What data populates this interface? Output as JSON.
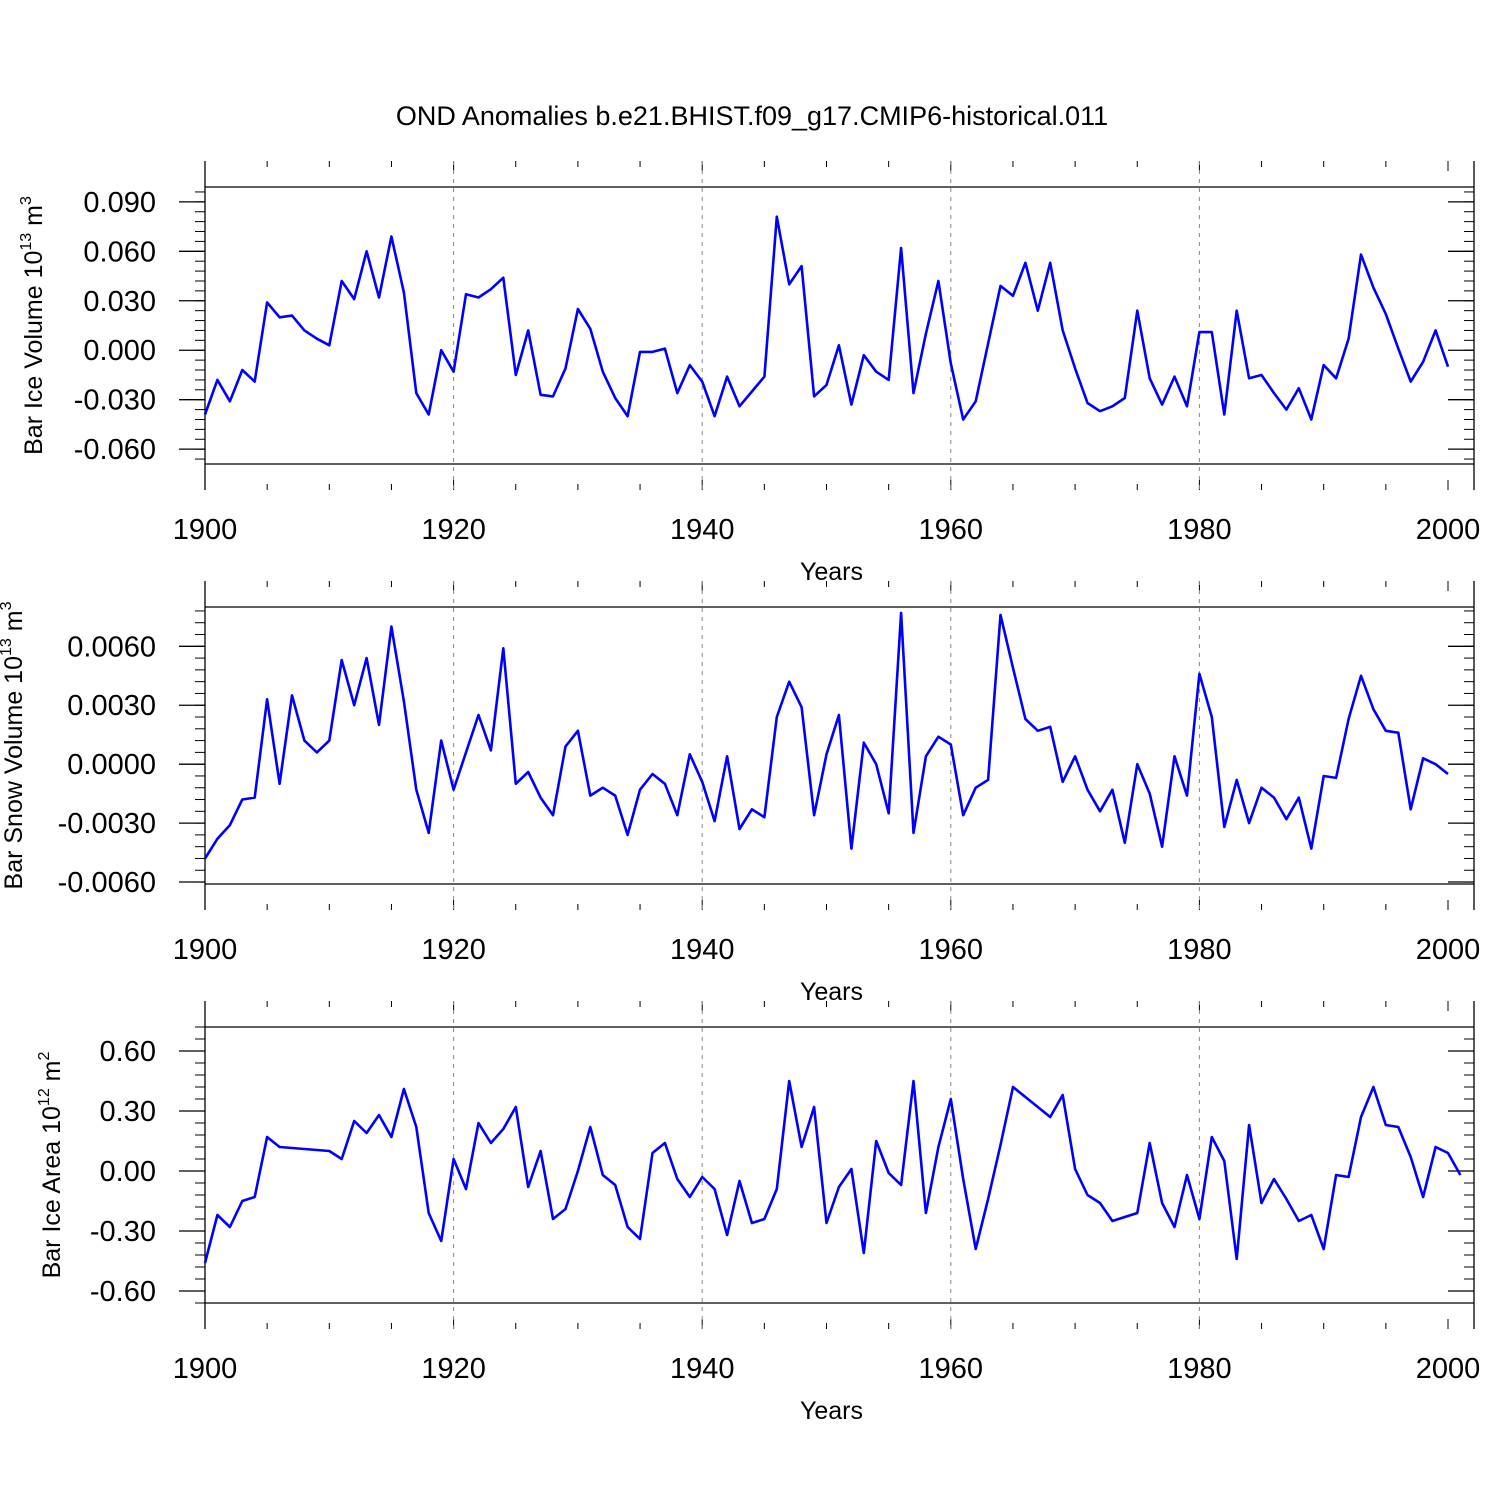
{
  "title": "OND Anomalies b.e21.BHIST.f09_g17.CMIP6-historical.011",
  "colors": {
    "series": "#0000ff",
    "axis": "#000000",
    "grid": "#888888"
  },
  "chart_data": [
    {
      "type": "line",
      "name": "ice-volume",
      "ylabel_main": "Bar Ice Volume 10",
      "ylabel_exp": "13",
      "ylabel_unit": " m",
      "ylabel_unit_exp": "3",
      "xlabel": "Years",
      "xlim": [
        1900,
        2000
      ],
      "ylim": [
        -0.069,
        0.099
      ],
      "xticks": [
        "1900",
        "1920",
        "1940",
        "1960",
        "1980",
        "2000"
      ],
      "yticks": [
        -0.06,
        -0.03,
        0.0,
        0.03,
        0.06,
        0.09
      ],
      "yticklabels": [
        "-0.060",
        "-0.030",
        "0.000",
        "0.030",
        "0.060",
        "0.090"
      ],
      "x_start": 1900,
      "values": [
        -0.039,
        -0.018,
        -0.031,
        -0.012,
        -0.019,
        0.029,
        0.02,
        0.021,
        0.012,
        0.007,
        0.003,
        0.042,
        0.031,
        0.06,
        0.032,
        0.069,
        0.035,
        -0.026,
        -0.039,
        0.0,
        -0.013,
        0.034,
        0.032,
        0.037,
        0.044,
        -0.015,
        0.012,
        -0.027,
        -0.028,
        -0.011,
        0.025,
        0.013,
        -0.013,
        -0.029,
        -0.04,
        -0.001,
        -0.001,
        0.001,
        -0.026,
        -0.009,
        -0.019,
        -0.04,
        -0.016,
        -0.034,
        -0.025,
        -0.016,
        0.081,
        0.04,
        0.051,
        -0.028,
        -0.021,
        0.003,
        -0.033,
        -0.003,
        -0.013,
        -0.018,
        0.062,
        -0.026,
        0.01,
        0.042,
        -0.008,
        -0.042,
        -0.031,
        0.004,
        0.039,
        0.033,
        0.053,
        0.024,
        0.053,
        0.012,
        -0.011,
        -0.032,
        -0.037,
        -0.034,
        -0.029,
        0.024,
        -0.017,
        -0.033,
        -0.016,
        -0.034,
        0.011,
        0.011,
        -0.039,
        0.024,
        -0.017,
        -0.015,
        -0.026,
        -0.036,
        -0.023,
        -0.042,
        -0.009,
        -0.017,
        0.007,
        0.058,
        0.038,
        0.022,
        0.001,
        -0.019,
        -0.007,
        0.012,
        -0.01
      ]
    },
    {
      "type": "line",
      "name": "snow-volume",
      "ylabel_main": "Bar Snow Volume 10",
      "ylabel_exp": "13",
      "ylabel_unit": " m",
      "ylabel_unit_exp": "3",
      "xlabel": "Years",
      "xlim": [
        1900,
        2000
      ],
      "ylim": [
        -0.0061,
        0.008
      ],
      "xticks": [
        "1900",
        "1920",
        "1940",
        "1960",
        "1980",
        "2000"
      ],
      "yticks": [
        -0.006,
        -0.003,
        0.0,
        0.003,
        0.006
      ],
      "yticklabels": [
        "-0.0060",
        "-0.0030",
        "0.0000",
        "0.0030",
        "0.0060"
      ],
      "x_start": 1900,
      "values": [
        -0.0048,
        -0.0038,
        -0.0031,
        -0.0018,
        -0.0017,
        0.0033,
        -0.001,
        0.0035,
        0.0012,
        0.0006,
        0.0012,
        0.0053,
        0.003,
        0.0054,
        0.002,
        0.007,
        0.0032,
        -0.0013,
        -0.0035,
        0.0012,
        -0.0013,
        0.0006,
        0.0025,
        0.0007,
        0.0059,
        -0.001,
        -0.0004,
        -0.0017,
        -0.0026,
        0.0009,
        0.0017,
        -0.0016,
        -0.0012,
        -0.0016,
        -0.0036,
        -0.0013,
        -0.0005,
        -0.001,
        -0.0026,
        0.0005,
        -0.0009,
        -0.0029,
        0.0004,
        -0.0033,
        -0.0023,
        -0.0027,
        0.0024,
        0.0042,
        0.0029,
        -0.0026,
        0.0005,
        0.0025,
        -0.0043,
        0.0011,
        0.0,
        -0.0025,
        0.0077,
        -0.0035,
        0.0004,
        0.0014,
        0.001,
        -0.0026,
        -0.0012,
        -0.0008,
        0.0076,
        0.0049,
        0.0023,
        0.0017,
        0.0019,
        -0.0009,
        0.0004,
        -0.0013,
        -0.0024,
        -0.0013,
        -0.004,
        0.0,
        -0.0015,
        -0.0042,
        0.0004,
        -0.0016,
        0.0046,
        0.0024,
        -0.0032,
        -0.0008,
        -0.003,
        -0.0012,
        -0.0017,
        -0.0028,
        -0.0017,
        -0.0043,
        -0.0006,
        -0.0007,
        0.0023,
        0.0045,
        0.0028,
        0.0017,
        0.0016,
        -0.0023,
        0.0003,
        0.0,
        -0.0005
      ]
    },
    {
      "type": "line",
      "name": "ice-area",
      "ylabel_main": "Bar Ice Area 10",
      "ylabel_exp": "12",
      "ylabel_unit": " m",
      "ylabel_unit_exp": "2",
      "xlabel": "Years",
      "xlim": [
        1900,
        2000
      ],
      "ylim": [
        -0.66,
        0.72
      ],
      "xticks": [
        "1900",
        "1920",
        "1940",
        "1960",
        "1980",
        "2000"
      ],
      "yticks": [
        -0.6,
        -0.3,
        0.0,
        0.3,
        0.6
      ],
      "yticklabels": [
        "-0.60",
        "-0.30",
        "0.00",
        "0.30",
        "0.60"
      ],
      "x_start": 1900,
      "values": [
        -0.46,
        -0.22,
        -0.28,
        -0.15,
        -0.13,
        0.17,
        0.12,
        0.115,
        0.11,
        0.105,
        0.1,
        0.06,
        0.25,
        0.19,
        0.28,
        0.17,
        0.41,
        0.22,
        -0.21,
        -0.35,
        0.06,
        -0.09,
        0.24,
        0.14,
        0.21,
        0.32,
        -0.08,
        0.1,
        -0.24,
        -0.19,
        0.0,
        0.22,
        -0.02,
        -0.07,
        -0.28,
        -0.34,
        0.09,
        0.14,
        -0.04,
        -0.13,
        -0.03,
        -0.09,
        -0.32,
        -0.05,
        -0.26,
        -0.24,
        -0.09,
        0.45,
        0.12,
        0.32,
        -0.26,
        -0.08,
        0.01,
        -0.41,
        0.15,
        -0.01,
        -0.07,
        0.45,
        -0.21,
        0.12,
        0.36,
        -0.04,
        -0.39,
        -0.14,
        0.13,
        0.42,
        0.37,
        0.32,
        0.27,
        0.38,
        0.01,
        -0.12,
        -0.16,
        -0.25,
        -0.23,
        -0.21,
        0.14,
        -0.16,
        -0.28,
        -0.02,
        -0.24,
        0.17,
        0.05,
        -0.44,
        0.23,
        -0.16,
        -0.04,
        -0.14,
        -0.25,
        -0.22,
        -0.39,
        -0.02,
        -0.03,
        0.27,
        0.42,
        0.23,
        0.22,
        0.07,
        -0.13,
        0.12,
        0.09,
        -0.02
      ]
    }
  ]
}
